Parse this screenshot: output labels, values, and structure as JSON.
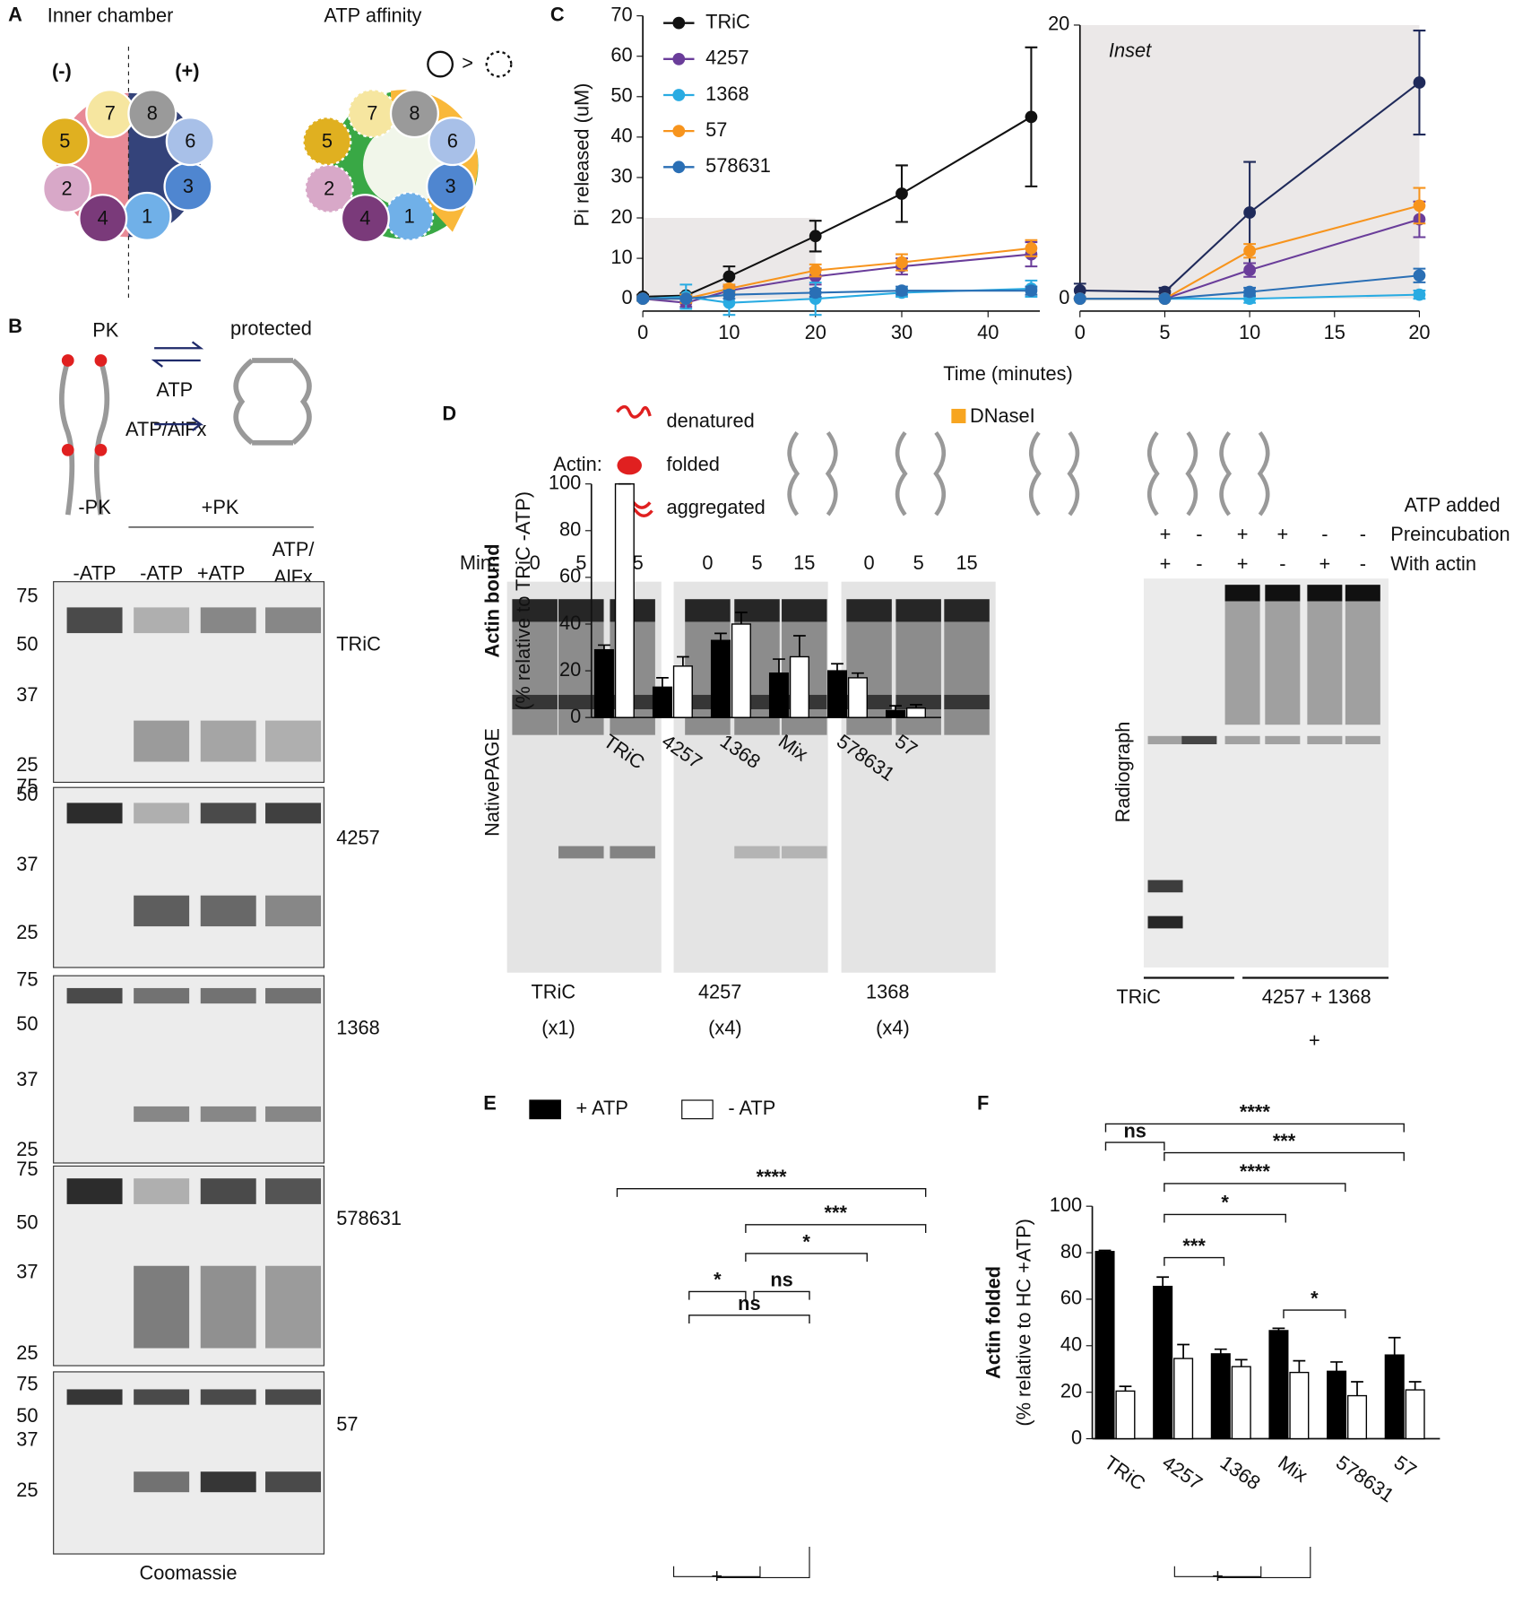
{
  "panel_labels": [
    "A",
    "B",
    "C",
    "D",
    "E",
    "F"
  ],
  "panel_a": {
    "titles": [
      "Inner chamber",
      "ATP affinity"
    ],
    "charges": [
      "(-)",
      "(+)"
    ],
    "subunits": [
      "1",
      "2",
      "3",
      "4",
      "5",
      "6",
      "7",
      "8"
    ]
  },
  "panel_b": {
    "enzyme": "PK",
    "state": "protected",
    "nucleotides": [
      "ATP",
      "ATP/AlFx"
    ],
    "groups": [
      "-PK",
      "+PK"
    ],
    "lanes": [
      "-ATP",
      "-ATP",
      "+ATP",
      "ATP/",
      "AlFx"
    ],
    "mw": [
      "75",
      "50",
      "37",
      "25"
    ],
    "gels": [
      "TRiC",
      "4257",
      "1368",
      "578631",
      "57"
    ],
    "stain": "Coomassie"
  },
  "panel_d": {
    "actin_label": "Actin:",
    "legend": [
      "denatured",
      "folded",
      "aggregated"
    ],
    "dnase": "DNaseI",
    "min_label": "Min:",
    "times": [
      "0",
      "5",
      "15"
    ],
    "native_label": "NativePAGE",
    "native_samples": [
      {
        "name": "TRiC",
        "scale": "(x1)"
      },
      {
        "name": "4257",
        "scale": "(x4)"
      },
      {
        "name": "1368",
        "scale": "(x4)"
      }
    ],
    "radiograph_title": "ATP added",
    "conditions": [
      {
        "name": "Preincubation",
        "signs": [
          "+",
          "-",
          "+",
          "+",
          "-",
          "-"
        ]
      },
      {
        "name": "With actin",
        "signs": [
          "+",
          "-",
          "+",
          "-",
          "+",
          "-"
        ]
      }
    ],
    "radiograph_label": "Radiograph",
    "radiograph_groups": [
      "TRiC",
      "4257 + 1368"
    ],
    "plus": "+"
  },
  "chart_data": [
    {
      "type": "line",
      "ylabel": "Pi released (uM)",
      "xlabel": "Time (minutes)",
      "x": [
        0,
        5,
        10,
        20,
        30,
        45
      ],
      "xlim": [
        0,
        46
      ],
      "xticks": [
        0,
        10,
        20,
        30,
        40
      ],
      "ylim": [
        0,
        70
      ],
      "yticks": [
        0,
        10,
        20,
        30,
        40,
        50,
        60,
        70
      ],
      "series": [
        {
          "name": "TRiC",
          "color": "#111111",
          "values": [
            0.5,
            0.8,
            5.5,
            15.5,
            26,
            45
          ],
          "errors": [
            0.5,
            0.5,
            2.5,
            3.8,
            7,
            17.2
          ]
        },
        {
          "name": "4257",
          "color": "#6a3d9a",
          "values": [
            0,
            -1,
            2,
            5.5,
            8,
            11
          ],
          "errors": [
            0.5,
            1,
            1,
            2,
            2,
            3
          ]
        },
        {
          "name": "1368",
          "color": "#29abe2",
          "values": [
            0,
            0.5,
            -1,
            0,
            1.5,
            2.5
          ],
          "errors": [
            0.5,
            3,
            3,
            4,
            1,
            2
          ]
        },
        {
          "name": "57",
          "color": "#f7941d",
          "values": [
            0,
            0,
            2.5,
            7,
            9,
            12.5
          ],
          "errors": [
            0.5,
            1,
            1,
            1.5,
            2,
            2
          ]
        },
        {
          "name": "578631",
          "color": "#2a6fb5",
          "values": [
            0,
            0,
            1,
            1.5,
            2,
            2
          ],
          "errors": [
            0.5,
            0.5,
            1,
            1,
            1,
            1
          ]
        }
      ]
    },
    {
      "type": "line",
      "title": "Inset",
      "x": [
        0,
        5,
        10,
        20
      ],
      "xlim": [
        0,
        20
      ],
      "xticks": [
        0,
        5,
        10,
        15,
        20
      ],
      "ylim": [
        0,
        20
      ],
      "yticks": [
        0,
        20
      ],
      "series": [
        {
          "name": "TRiC",
          "color": "#1f2a5a",
          "values": [
            0.6,
            0.5,
            6.3,
            15.8
          ],
          "errors": [
            0.5,
            0.3,
            3.7,
            3.8
          ]
        },
        {
          "name": "4257",
          "color": "#6a3d9a",
          "values": [
            0,
            0,
            2.1,
            5.8
          ],
          "errors": [
            0,
            0,
            0.5,
            1.3
          ]
        },
        {
          "name": "1368",
          "color": "#29abe2",
          "values": [
            0,
            0,
            0,
            0.3
          ],
          "errors": [
            0,
            0,
            0.3,
            0.3
          ]
        },
        {
          "name": "57",
          "color": "#f7941d",
          "values": [
            0,
            0,
            3.5,
            6.8
          ],
          "errors": [
            0,
            0,
            0.5,
            1.3
          ]
        },
        {
          "name": "578631",
          "color": "#2a6fb5",
          "values": [
            0,
            0,
            0.5,
            1.7
          ],
          "errors": [
            0,
            0,
            0.3,
            0.5
          ]
        }
      ]
    },
    {
      "type": "bar",
      "ylabel": [
        "Actin bound",
        "(% relative to TRiC -ATP)"
      ],
      "categories": [
        "TRiC",
        "4257",
        "1368",
        "Mix",
        "578631",
        "57"
      ],
      "ylim": [
        0,
        100
      ],
      "yticks": [
        0,
        20,
        40,
        60,
        80,
        100
      ],
      "series": [
        {
          "name": "+ ATP",
          "color": "#000000",
          "values": [
            29,
            13,
            33,
            19,
            20,
            3
          ],
          "errors": [
            2,
            4,
            3,
            6,
            3,
            2
          ]
        },
        {
          "name": "- ATP",
          "color": "#ffffff",
          "values": [
            100,
            22,
            40,
            26,
            17,
            4
          ],
          "errors": [
            0,
            4,
            5,
            9,
            2,
            1.5
          ]
        }
      ],
      "significance": [
        "****",
        "***",
        "*",
        "*",
        "ns",
        "ns"
      ]
    },
    {
      "type": "bar",
      "ylabel": [
        "Actin folded",
        "(% relative to HC +ATP)"
      ],
      "categories": [
        "TRiC",
        "4257",
        "1368",
        "Mix",
        "578631",
        "57"
      ],
      "ylim": [
        0,
        100
      ],
      "yticks": [
        0,
        20,
        40,
        60,
        80,
        100
      ],
      "series": [
        {
          "name": "+ ATP",
          "color": "#000000",
          "values": [
            80.5,
            65.5,
            36.5,
            46.5,
            29,
            36
          ],
          "errors": [
            0.5,
            4,
            2,
            1,
            4,
            7.5
          ]
        },
        {
          "name": "- ATP",
          "color": "#ffffff",
          "values": [
            20.5,
            34.5,
            31,
            28.5,
            18.5,
            21
          ],
          "errors": [
            2,
            6,
            3,
            5,
            6,
            3.5
          ]
        }
      ],
      "significance": [
        "****",
        "***",
        "****",
        "*",
        "ns",
        "***",
        "*"
      ]
    }
  ]
}
